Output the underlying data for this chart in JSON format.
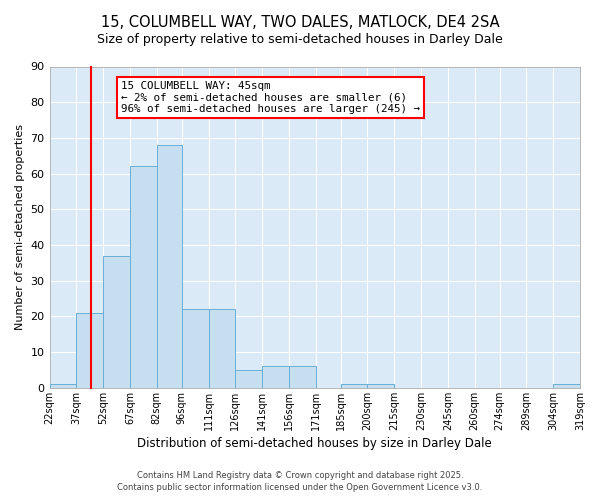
{
  "title": "15, COLUMBELL WAY, TWO DALES, MATLOCK, DE4 2SA",
  "subtitle": "Size of property relative to semi-detached houses in Darley Dale",
  "xlabel": "Distribution of semi-detached houses by size in Darley Dale",
  "ylabel": "Number of semi-detached properties",
  "bar_edges": [
    22,
    37,
    52,
    67,
    82,
    96,
    111,
    126,
    141,
    156,
    171,
    185,
    200,
    215,
    230,
    245,
    260,
    274,
    289,
    304,
    319
  ],
  "bar_heights": [
    1,
    21,
    37,
    62,
    68,
    22,
    22,
    5,
    6,
    6,
    0,
    1,
    1,
    0,
    0,
    0,
    0,
    0,
    0,
    1
  ],
  "bar_color": "#c5dff0",
  "bar_edge_color": "#6aafd6",
  "property_line_x": 45,
  "property_line_color": "red",
  "annotation_title": "15 COLUMBELL WAY: 45sqm",
  "annotation_line1": "← 2% of semi-detached houses are smaller (6)",
  "annotation_line2": "96% of semi-detached houses are larger (245) →",
  "ylim": [
    0,
    90
  ],
  "yticks": [
    0,
    10,
    20,
    30,
    40,
    50,
    60,
    70,
    80,
    90
  ],
  "tick_labels": [
    "22sqm",
    "37sqm",
    "52sqm",
    "67sqm",
    "82sqm",
    "96sqm",
    "111sqm",
    "126sqm",
    "141sqm",
    "156sqm",
    "171sqm",
    "185sqm",
    "200sqm",
    "215sqm",
    "230sqm",
    "245sqm",
    "260sqm",
    "274sqm",
    "289sqm",
    "304sqm",
    "319sqm"
  ],
  "footnote1": "Contains HM Land Registry data © Crown copyright and database right 2025.",
  "footnote2": "Contains public sector information licensed under the Open Government Licence v3.0.",
  "fig_bg_color": "#ffffff",
  "plot_bg_color": "#daeaf7",
  "grid_color": "#ffffff",
  "title_fontsize": 10.5,
  "subtitle_fontsize": 9
}
